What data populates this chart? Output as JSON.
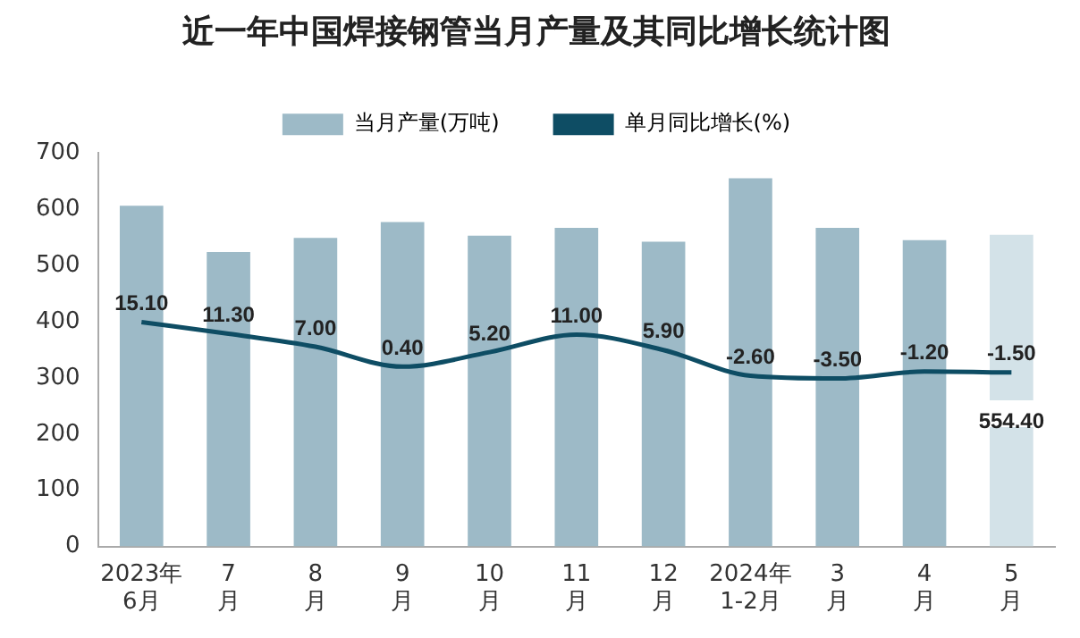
{
  "chart_data": {
    "type": "bar",
    "title": "近一年中国焊接钢管当月产量及其同比增长统计图",
    "categories": [
      "2023年\n6月",
      "7\n月",
      "8\n月",
      "9\n月",
      "10\n月",
      "11\n月",
      "12\n月",
      "2024年\n1-2月",
      "3\n月",
      "4\n月",
      "5\n月"
    ],
    "series": [
      {
        "name": "当月产量(万吨)",
        "color": "#9dbac7",
        "colors": [
          "#9dbac7",
          "#9dbac7",
          "#9dbac7",
          "#9dbac7",
          "#9dbac7",
          "#9dbac7",
          "#9dbac7",
          "#9dbac7",
          "#9dbac7",
          "#9dbac7",
          "#d3e2e8"
        ],
        "values": [
          606,
          524,
          549,
          577,
          553,
          567,
          542,
          655,
          567,
          545,
          554.4
        ],
        "value_labels": [
          null,
          null,
          null,
          null,
          null,
          null,
          null,
          null,
          null,
          null,
          "554.40"
        ]
      },
      {
        "name": "单月同比增长(%)",
        "type": "line",
        "axis": "y2",
        "color": "#0e4d64",
        "values": [
          15.1,
          11.3,
          7.0,
          0.4,
          5.2,
          11.0,
          5.9,
          -2.6,
          -3.5,
          -1.2,
          -1.5
        ],
        "value_labels": [
          "15.10",
          "11.30",
          "7.00",
          "0.40",
          "5.20",
          "11.00",
          "5.90",
          "-2.60",
          "-3.50",
          "-1.20",
          "-1.50"
        ]
      }
    ],
    "ylim": [
      0,
      700
    ],
    "yticks": [
      0,
      100,
      200,
      300,
      400,
      500,
      600,
      700
    ],
    "y2lim": [
      -59,
      71
    ],
    "legend": "top",
    "grid": false,
    "marker": "none",
    "line_style": "solid"
  }
}
